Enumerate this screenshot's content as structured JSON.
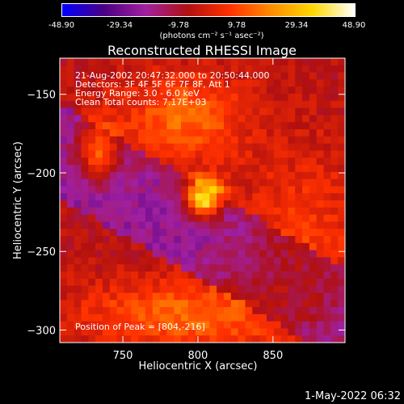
{
  "colorbar": {
    "tick_labels": [
      "-48.90",
      "-29.34",
      "-9.78",
      "9.78",
      "29.34",
      "48.90"
    ],
    "unit_label": "(photons cm⁻² s⁻¹ asec⁻²)",
    "range": [
      -48.9,
      48.9
    ]
  },
  "chart_data": {
    "type": "heatmap",
    "title": "Reconstructed RHESSI Image",
    "xlabel": "Heliocentric X (arcsec)",
    "ylabel": "Heliocentric Y (arcsec)",
    "xlim": [
      708,
      898
    ],
    "ylim": [
      -308,
      -127
    ],
    "x_ticks": [
      750,
      800,
      850
    ],
    "y_ticks": [
      -150,
      -200,
      -250,
      -300
    ],
    "x_tick_labels": [
      "750",
      "800",
      "850"
    ],
    "y_tick_labels": [
      "−150",
      "−200",
      "−250",
      "−300"
    ],
    "annotations": [
      "21-Aug-2002 20:47:32.000 to 20:50:44.000",
      "Detectors: 3F 4F 5F 6F 7F 8F, Att 1",
      "Energy Range: 3.0 - 6.0 keV",
      "Clean     Total counts: 7.17E+03"
    ],
    "peak_label": "Position of Peak = [804,-216]",
    "peak": [
      804,
      -216
    ],
    "value_range": [
      -48.9,
      48.9
    ],
    "colors": [
      "#0000ff",
      "#4b0082",
      "#a020a0",
      "#b01010",
      "#ff3000",
      "#ff8c00",
      "#ffd800",
      "#ffffff"
    ]
  },
  "footer": {
    "date": "1-May-2022 06:32"
  }
}
